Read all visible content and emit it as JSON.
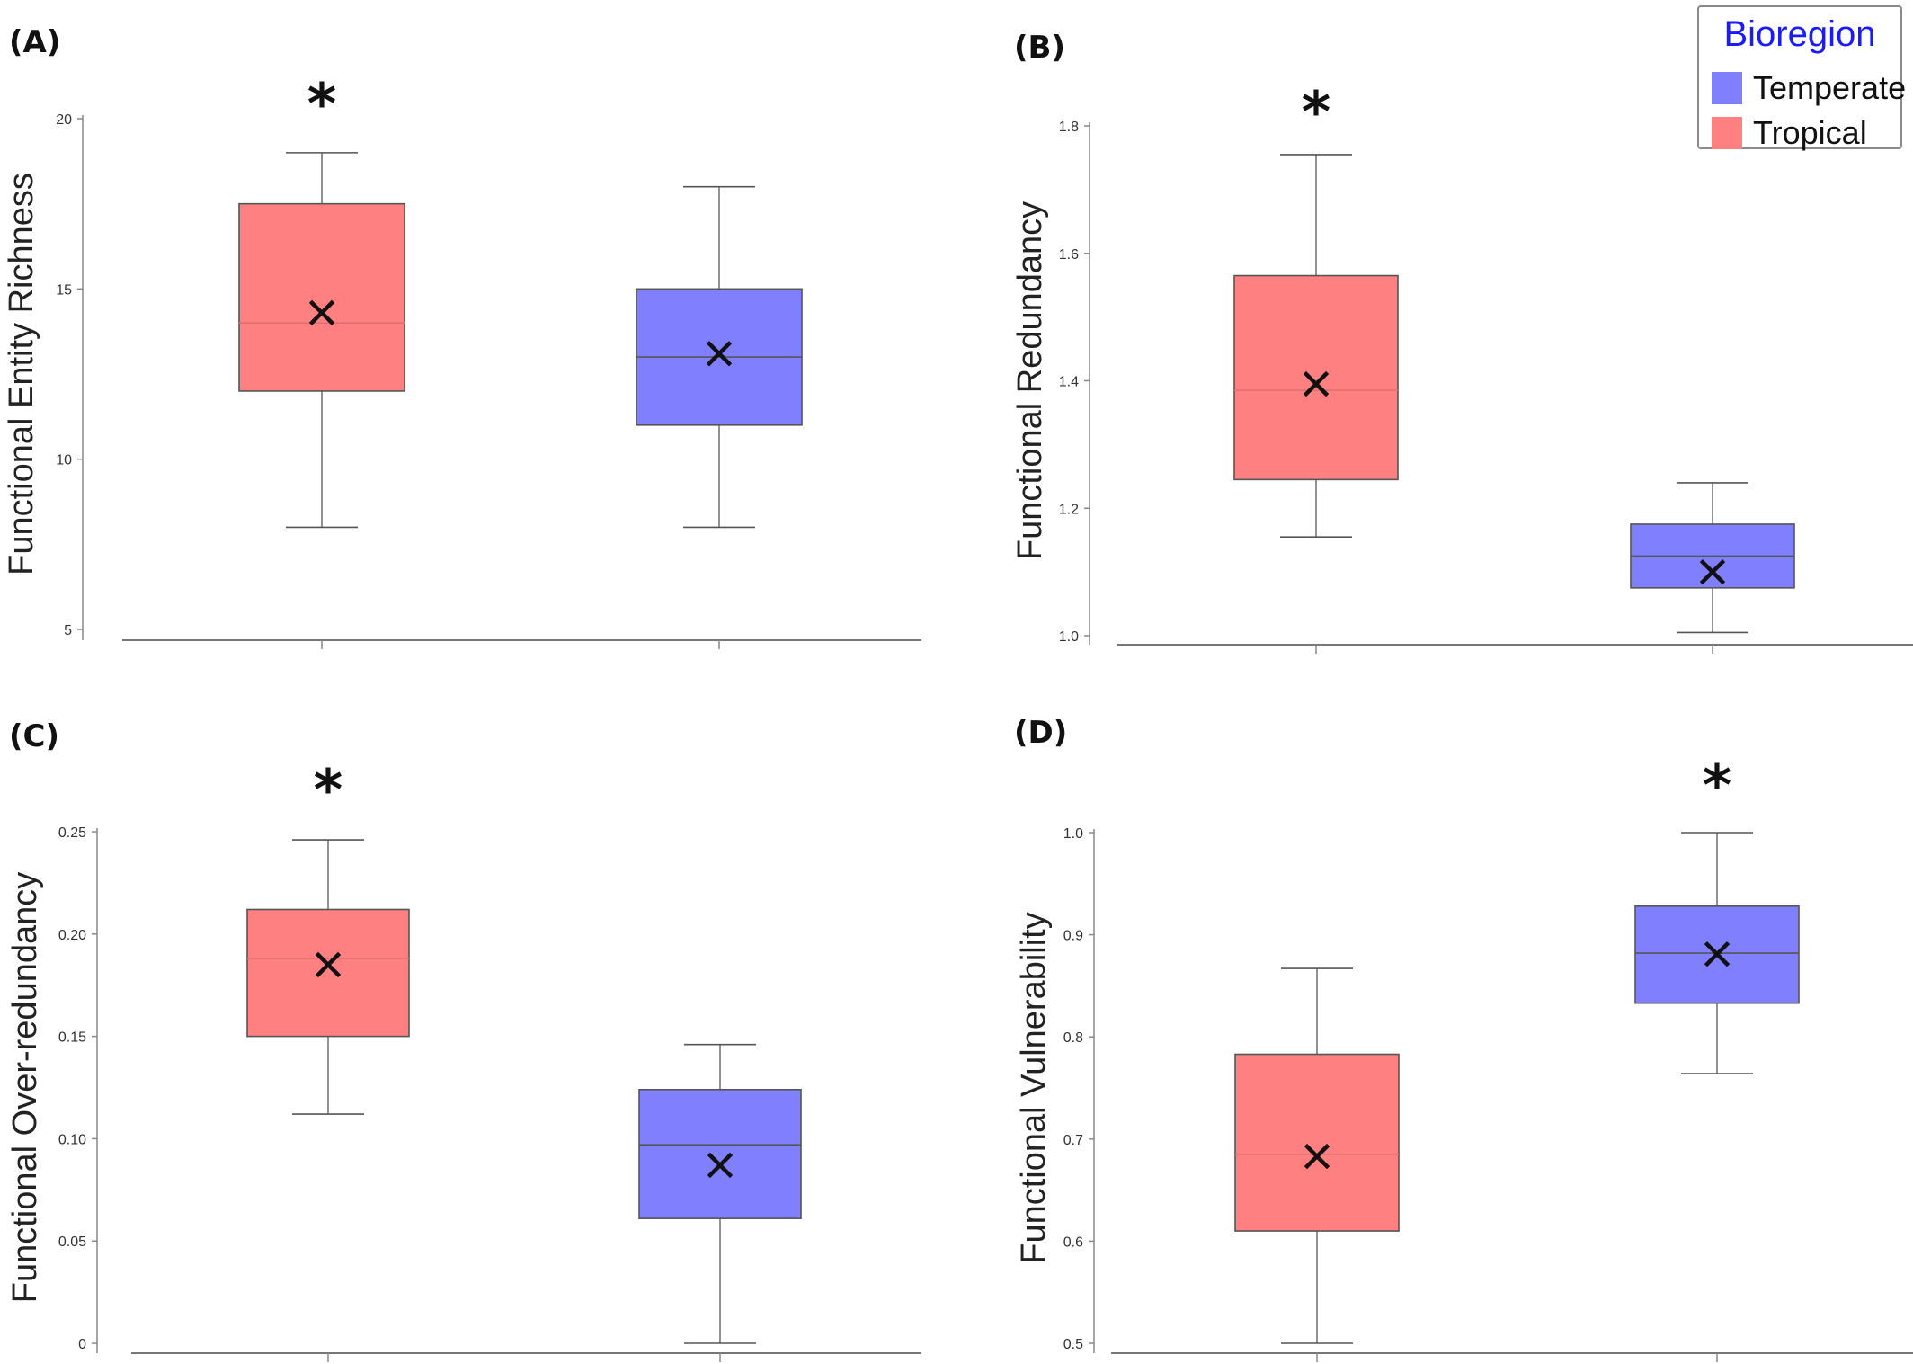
{
  "colors": {
    "Tropical": "#ff8080",
    "Temperate": "#8080ff",
    "legend_title": "#1a1aff"
  },
  "legend": {
    "title": "Bioregion",
    "items": [
      {
        "label": "Temperate",
        "color": "#8080ff"
      },
      {
        "label": "Tropical",
        "color": "#ff8080"
      }
    ]
  },
  "chart_data": [
    {
      "type": "box",
      "panel_label": "(A)",
      "ylabel": "Functional Entity Richness",
      "ylim": [
        5,
        20
      ],
      "yticks": [
        "5",
        "10",
        "15",
        "20"
      ],
      "x_tick_labels": [],
      "groups": [
        {
          "bioregion": "Tropical",
          "min": 8,
          "q1": 12,
          "median": 14,
          "q3": 17.5,
          "max": 19,
          "mean": 14.3,
          "significant": true,
          "sig_mark": "*"
        },
        {
          "bioregion": "Temperate",
          "min": 8,
          "q1": 11,
          "median": 13,
          "q3": 15,
          "max": 18,
          "mean": 13.1,
          "significant": false,
          "sig_mark": ""
        }
      ]
    },
    {
      "type": "box",
      "panel_label": "(B)",
      "ylabel": "Functional Redundancy",
      "ylim": [
        1.0,
        1.8
      ],
      "yticks": [
        "1.0",
        "1.2",
        "1.4",
        "1.6",
        "1.8"
      ],
      "x_tick_labels": [],
      "groups": [
        {
          "bioregion": "Tropical",
          "min": 1.155,
          "q1": 1.245,
          "median": 1.385,
          "q3": 1.565,
          "max": 1.755,
          "mean": 1.395,
          "significant": true,
          "sig_mark": "*"
        },
        {
          "bioregion": "Temperate",
          "min": 1.005,
          "q1": 1.075,
          "median": 1.125,
          "q3": 1.175,
          "max": 1.24,
          "mean": 1.1,
          "significant": false,
          "sig_mark": ""
        }
      ]
    },
    {
      "type": "box",
      "panel_label": "(C)",
      "ylabel": "Functional Over-redundancy",
      "ylim": [
        0,
        0.25
      ],
      "yticks": [
        "0",
        "0.05",
        "0.10",
        "0.15",
        "0.20",
        "0.25"
      ],
      "x_tick_labels": [],
      "groups": [
        {
          "bioregion": "Tropical",
          "min": 0.112,
          "q1": 0.15,
          "median": 0.188,
          "q3": 0.212,
          "max": 0.246,
          "mean": 0.185,
          "significant": true,
          "sig_mark": "*"
        },
        {
          "bioregion": "Temperate",
          "min": 0.0,
          "q1": 0.061,
          "median": 0.097,
          "q3": 0.124,
          "max": 0.146,
          "mean": 0.087,
          "significant": false,
          "sig_mark": ""
        }
      ]
    },
    {
      "type": "box",
      "panel_label": "(D)",
      "ylabel": "Functional Vulnerability",
      "ylim": [
        0.5,
        1.0
      ],
      "yticks": [
        "0.5",
        "0.6",
        "0.7",
        "0.8",
        "0.9",
        "1.0"
      ],
      "x_tick_labels": [],
      "groups": [
        {
          "bioregion": "Tropical",
          "min": 0.5,
          "q1": 0.61,
          "median": 0.685,
          "q3": 0.783,
          "max": 0.867,
          "mean": 0.683,
          "significant": false,
          "sig_mark": ""
        },
        {
          "bioregion": "Temperate",
          "min": 0.764,
          "q1": 0.833,
          "median": 0.882,
          "q3": 0.928,
          "max": 1.0,
          "mean": 0.881,
          "significant": true,
          "sig_mark": "*"
        }
      ]
    }
  ]
}
